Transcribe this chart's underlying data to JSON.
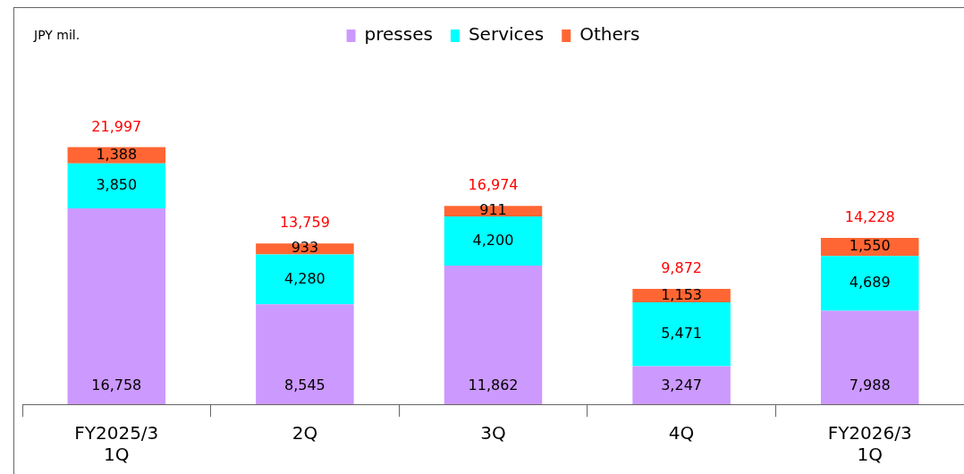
{
  "chart_data": {
    "type": "bar",
    "stacked": true,
    "annotations": [
      "JPY mil."
    ],
    "legend": "top",
    "categories": [
      "FY2025/3\n1Q",
      "2Q",
      "3Q",
      "4Q",
      "FY2026/3\n1Q"
    ],
    "series": [
      {
        "name": "presses",
        "color": "#cc99ff",
        "values": [
          16758,
          8545,
          11862,
          3247,
          7988
        ],
        "value_labels": [
          "16,758",
          "8,545",
          "11,862",
          "3,247",
          "7,988"
        ]
      },
      {
        "name": "Services",
        "color": "#00ffff",
        "values": [
          3850,
          4280,
          4200,
          5471,
          4689
        ],
        "value_labels": [
          "3,850",
          "4,280",
          "4,200",
          "5,471",
          "4,689"
        ]
      },
      {
        "name": "Others",
        "color": "#ff6633",
        "values": [
          1388,
          933,
          911,
          1153,
          1550
        ],
        "value_labels": [
          "1,388",
          "933",
          "911",
          "1,153",
          "1,550"
        ]
      }
    ],
    "totals": [
      "21,997",
      "13,759",
      "16,974",
      "9,872",
      "14,228"
    ]
  }
}
